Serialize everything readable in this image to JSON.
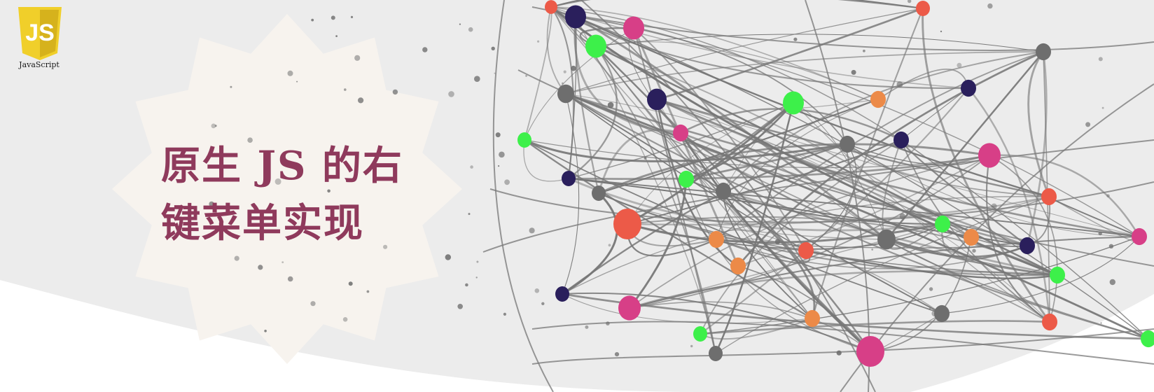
{
  "logo": {
    "glyph": "JS",
    "caption": "JavaScript",
    "colors": {
      "shield": "#f0cf2a",
      "shield_shade": "#d6b21c",
      "glyph": "#ffffff"
    }
  },
  "title": {
    "line1": "原生 JS 的右",
    "line2": "键菜单实现"
  },
  "colors": {
    "background": "#ececec",
    "star_badge": "#f7f3ee",
    "title_text": "#8f3a5c",
    "network_lines": "#6b6b6b",
    "node_colors": [
      "#ec5a48",
      "#2a1f5c",
      "#d73f87",
      "#3df04a",
      "#6e6e6e",
      "#ec8a48"
    ]
  }
}
